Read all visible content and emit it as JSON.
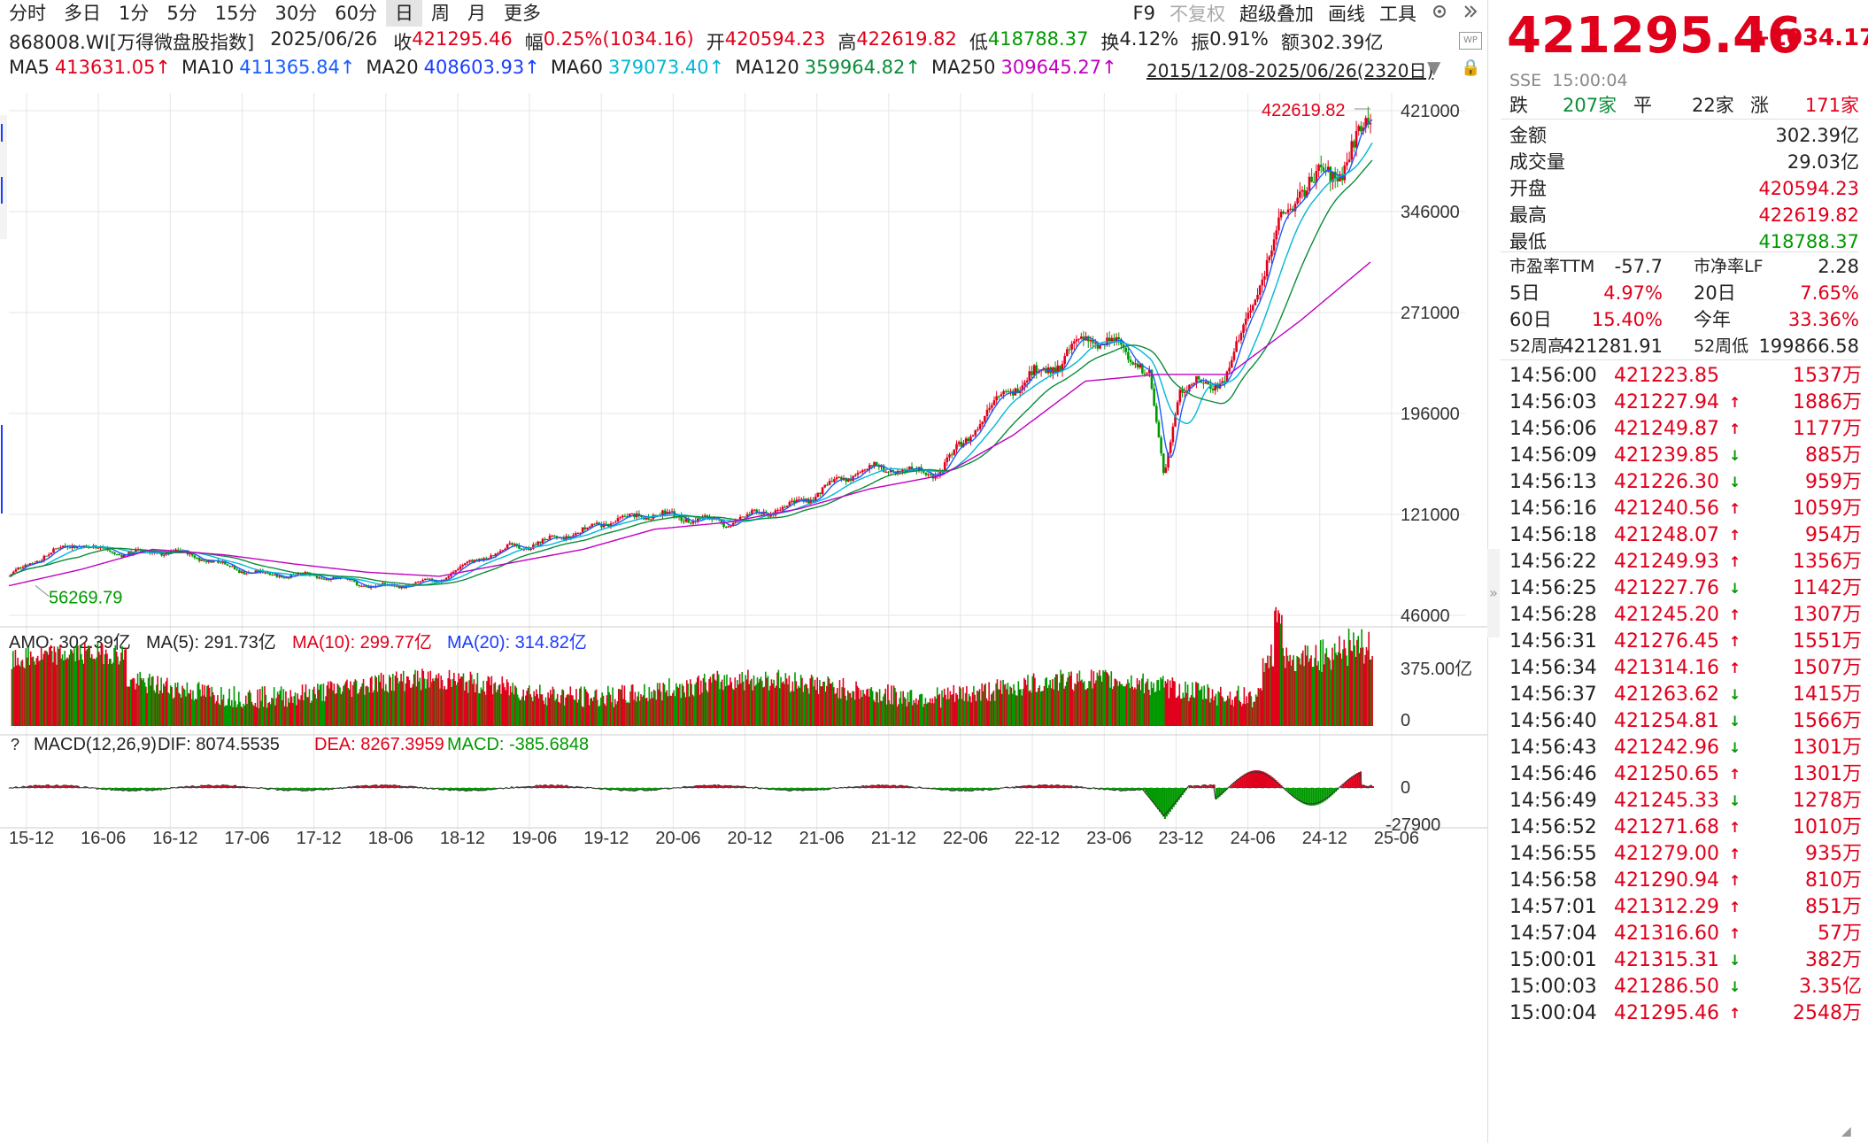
{
  "periods": [
    "分时",
    "多日",
    "1分",
    "5分",
    "15分",
    "30分",
    "60分",
    "日",
    "周",
    "月",
    "更多"
  ],
  "active_period": "日",
  "toolbar": {
    "f9": "F9",
    "no_restore": "不复权",
    "overlay": "超级叠加",
    "draw": "画线",
    "tools": "工具"
  },
  "quote": {
    "code": "868008.WI[万得微盘股指数]",
    "date": "2025/06/26",
    "close_label": "收",
    "close": "421295.46",
    "change_label": "幅",
    "change": "0.25%(1034.16)",
    "open_label": "开",
    "open": "420594.23",
    "high_label": "高",
    "high": "422619.82",
    "low_label": "低",
    "low": "418788.37",
    "turnover_label": "换",
    "turnover": "4.12%",
    "amplitude_label": "振",
    "amplitude": "0.91%",
    "amount_label": "额",
    "amount": "302.39亿"
  },
  "ma_line": [
    {
      "label": "MA5",
      "value": "413631.05↑",
      "color": "#e0001b"
    },
    {
      "label": "MA10",
      "value": "411365.84↑",
      "color": "#1a5cff"
    },
    {
      "label": "MA20",
      "value": "408603.93↑",
      "color": "#1a3cff"
    },
    {
      "label": "MA60",
      "value": "379073.40↑",
      "color": "#00b7d6"
    },
    {
      "label": "MA120",
      "value": "359964.82↑",
      "color": "#0b8c3a"
    },
    {
      "label": "MA250",
      "value": "309645.27↑",
      "color": "#c000c0"
    }
  ],
  "range_text": "2015/12/08-2025/06/26(2320日)",
  "wp_badge": "WP",
  "chart_data": [
    {
      "type": "line",
      "title": "868008.WI[万得微盘股指数]",
      "x": [
        "15-12",
        "16-06",
        "16-12",
        "17-06",
        "17-12",
        "18-06",
        "18-12",
        "19-06",
        "19-12",
        "20-06",
        "20-12",
        "21-06",
        "21-12",
        "22-06",
        "22-12",
        "23-06",
        "23-12",
        "24-06",
        "24-12",
        "25-06"
      ],
      "series": [
        {
          "name": "Close",
          "values": [
            75000,
            100000,
            92000,
            85000,
            74000,
            70000,
            70000,
            100000,
            105000,
            127000,
            110000,
            135000,
            150000,
            160000,
            210000,
            260000,
            215000,
            230000,
            360000,
            421295
          ]
        },
        {
          "name": "MA250",
          "values": [
            68000,
            80000,
            95000,
            91000,
            84000,
            78000,
            75000,
            85000,
            95000,
            110000,
            115000,
            125000,
            140000,
            150000,
            180000,
            220000,
            225000,
            225000,
            265000,
            309645
          ]
        }
      ],
      "y_ticks": [
        "421000",
        "346000",
        "271000",
        "196000",
        "121000",
        "46000"
      ],
      "ylim": [
        46000,
        421000
      ],
      "annotations": [
        {
          "label": "422619.82",
          "kind": "high"
        },
        {
          "label": "56269.79",
          "kind": "low"
        }
      ]
    },
    {
      "type": "bar",
      "title": "AMO",
      "header": {
        "amo": "AMO: 302.39亿",
        "ma5": "MA(5): 291.73亿",
        "ma10": "MA(10): 299.77亿",
        "ma20": "MA(20): 314.82亿"
      },
      "y_ticks": [
        "375.00亿",
        "0"
      ]
    },
    {
      "type": "bar",
      "title": "MACD(12,26,9)",
      "header": {
        "q": "?",
        "name": "MACD(12,26,9)",
        "dif": "DIF: 8074.5535",
        "dea": "DEA: 8267.3959",
        "macd": "MACD: -385.6848"
      },
      "y_ticks": [
        "0",
        "-27900"
      ]
    }
  ],
  "x_axis": [
    "15-12",
    "16-06",
    "16-12",
    "17-06",
    "17-12",
    "18-06",
    "18-12",
    "19-06",
    "19-12",
    "20-06",
    "20-12",
    "21-06",
    "21-12",
    "22-06",
    "22-12",
    "23-06",
    "23-12",
    "24-06",
    "24-12",
    "25-06"
  ],
  "panel": {
    "price": "421295.46",
    "change": "+1034.17",
    "exchange": "SSE",
    "time": "15:00:04",
    "breadth": {
      "down_label": "跌",
      "down": "207家",
      "flat_label": "平",
      "flat": "22家",
      "up_label": "涨",
      "up": "171家"
    },
    "stats": [
      {
        "label": "金额",
        "value": "302.39亿",
        "color": "#222"
      },
      {
        "label": "成交量",
        "value": "29.03亿",
        "color": "#222"
      },
      {
        "label": "开盘",
        "value": "420594.23",
        "color": "#e0001b"
      },
      {
        "label": "最高",
        "value": "422619.82",
        "color": "#e0001b"
      },
      {
        "label": "最低",
        "value": "418788.37",
        "color": "#009900"
      }
    ],
    "pairs": [
      {
        "l1": "市盈率TTM",
        "v1": "-57.7",
        "c1": "#222",
        "l2": "市净率LF",
        "v2": "2.28",
        "c2": "#222"
      },
      {
        "l1": "5日",
        "v1": "4.97%",
        "c1": "#e0001b",
        "l2": "20日",
        "v2": "7.65%",
        "c2": "#e0001b"
      },
      {
        "l1": "60日",
        "v1": "15.40%",
        "c1": "#e0001b",
        "l2": "今年",
        "v2": "33.36%",
        "c2": "#e0001b"
      },
      {
        "l1": "52周高",
        "v1": "421281.91",
        "c1": "#222",
        "l2": "52周低",
        "v2": "199866.58",
        "c2": "#222"
      }
    ],
    "ticks": [
      {
        "time": "14:56:00",
        "price": "421223.85",
        "dir": "",
        "vol": "1537万"
      },
      {
        "time": "14:56:03",
        "price": "421227.94",
        "dir": "up",
        "vol": "1886万"
      },
      {
        "time": "14:56:06",
        "price": "421249.87",
        "dir": "up",
        "vol": "1177万"
      },
      {
        "time": "14:56:09",
        "price": "421239.85",
        "dir": "down",
        "vol": "885万"
      },
      {
        "time": "14:56:13",
        "price": "421226.30",
        "dir": "down",
        "vol": "959万"
      },
      {
        "time": "14:56:16",
        "price": "421240.56",
        "dir": "up",
        "vol": "1059万"
      },
      {
        "time": "14:56:18",
        "price": "421248.07",
        "dir": "up",
        "vol": "954万"
      },
      {
        "time": "14:56:22",
        "price": "421249.93",
        "dir": "up",
        "vol": "1356万"
      },
      {
        "time": "14:56:25",
        "price": "421227.76",
        "dir": "down",
        "vol": "1142万"
      },
      {
        "time": "14:56:28",
        "price": "421245.20",
        "dir": "up",
        "vol": "1307万"
      },
      {
        "time": "14:56:31",
        "price": "421276.45",
        "dir": "up",
        "vol": "1551万"
      },
      {
        "time": "14:56:34",
        "price": "421314.16",
        "dir": "up",
        "vol": "1507万"
      },
      {
        "time": "14:56:37",
        "price": "421263.62",
        "dir": "down",
        "vol": "1415万"
      },
      {
        "time": "14:56:40",
        "price": "421254.81",
        "dir": "down",
        "vol": "1566万"
      },
      {
        "time": "14:56:43",
        "price": "421242.96",
        "dir": "down",
        "vol": "1301万"
      },
      {
        "time": "14:56:46",
        "price": "421250.65",
        "dir": "up",
        "vol": "1301万"
      },
      {
        "time": "14:56:49",
        "price": "421245.33",
        "dir": "down",
        "vol": "1278万"
      },
      {
        "time": "14:56:52",
        "price": "421271.68",
        "dir": "up",
        "vol": "1010万"
      },
      {
        "time": "14:56:55",
        "price": "421279.00",
        "dir": "up",
        "vol": "935万"
      },
      {
        "time": "14:56:58",
        "price": "421290.94",
        "dir": "up",
        "vol": "810万"
      },
      {
        "time": "14:57:01",
        "price": "421312.29",
        "dir": "up",
        "vol": "851万"
      },
      {
        "time": "14:57:04",
        "price": "421316.60",
        "dir": "up",
        "vol": "57万"
      },
      {
        "time": "15:00:01",
        "price": "421315.31",
        "dir": "down",
        "vol": "382万"
      },
      {
        "time": "15:00:03",
        "price": "421286.50",
        "dir": "down",
        "vol": "3.35亿"
      },
      {
        "time": "15:00:04",
        "price": "421295.46",
        "dir": "up",
        "vol": "2548万"
      }
    ]
  },
  "colors": {
    "up": "#e0001b",
    "down": "#009900",
    "grid": "#e6e6e6",
    "ma5": "#e0001b",
    "ma10": "#1a5cff",
    "ma20": "#1a3cff",
    "ma60": "#00b7d6",
    "ma120": "#0b8c3a",
    "ma250": "#c000c0"
  },
  "icons": {
    "gear": "gear-icon",
    "collapse": "chevron-double-right-icon",
    "lock": "lock-icon",
    "dropdown": "triangle-down-icon"
  }
}
